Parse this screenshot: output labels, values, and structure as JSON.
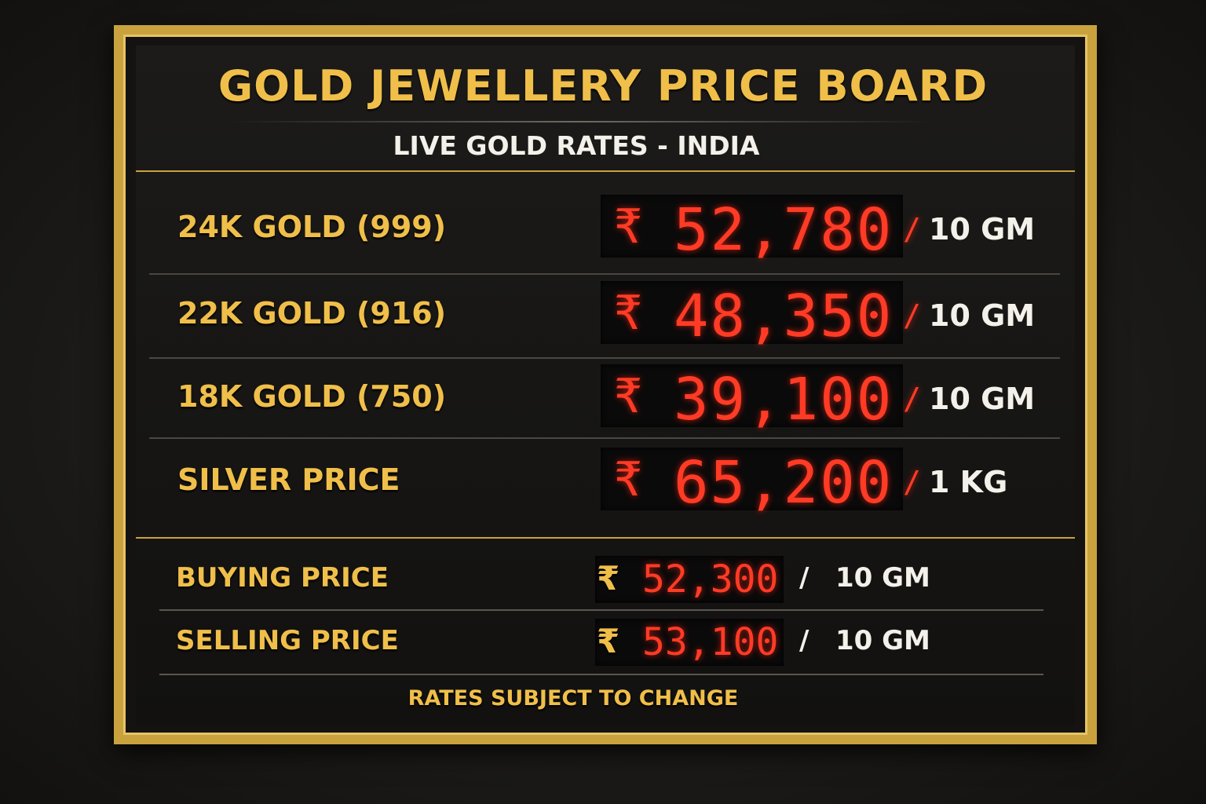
{
  "header": {
    "title": "GOLD JEWELLERY PRICE BOARD",
    "subtitle": "LIVE GOLD RATES - INDIA"
  },
  "rates": [
    {
      "label": "24K GOLD (999)",
      "currency": "₹",
      "price": "52,780",
      "separator": "/",
      "unit": "10 GM"
    },
    {
      "label": "22K GOLD (916)",
      "currency": "₹",
      "price": "48,350",
      "separator": "/",
      "unit": "10 GM"
    },
    {
      "label": "18K GOLD (750)",
      "currency": "₹",
      "price": "39,100",
      "separator": "/",
      "unit": "10 GM"
    },
    {
      "label": "SILVER PRICE",
      "currency": "₹",
      "price": "65,200",
      "separator": "/",
      "unit": "1 KG"
    }
  ],
  "trade": [
    {
      "label": "BUYING PRICE",
      "currency": "₹",
      "price": "52,300",
      "separator": "/",
      "unit": "10 GM"
    },
    {
      "label": "SELLING PRICE",
      "currency": "₹",
      "price": "53,100",
      "separator": "/",
      "unit": "10 GM"
    }
  ],
  "footer": {
    "note": "RATES SUBJECT TO CHANGE"
  }
}
